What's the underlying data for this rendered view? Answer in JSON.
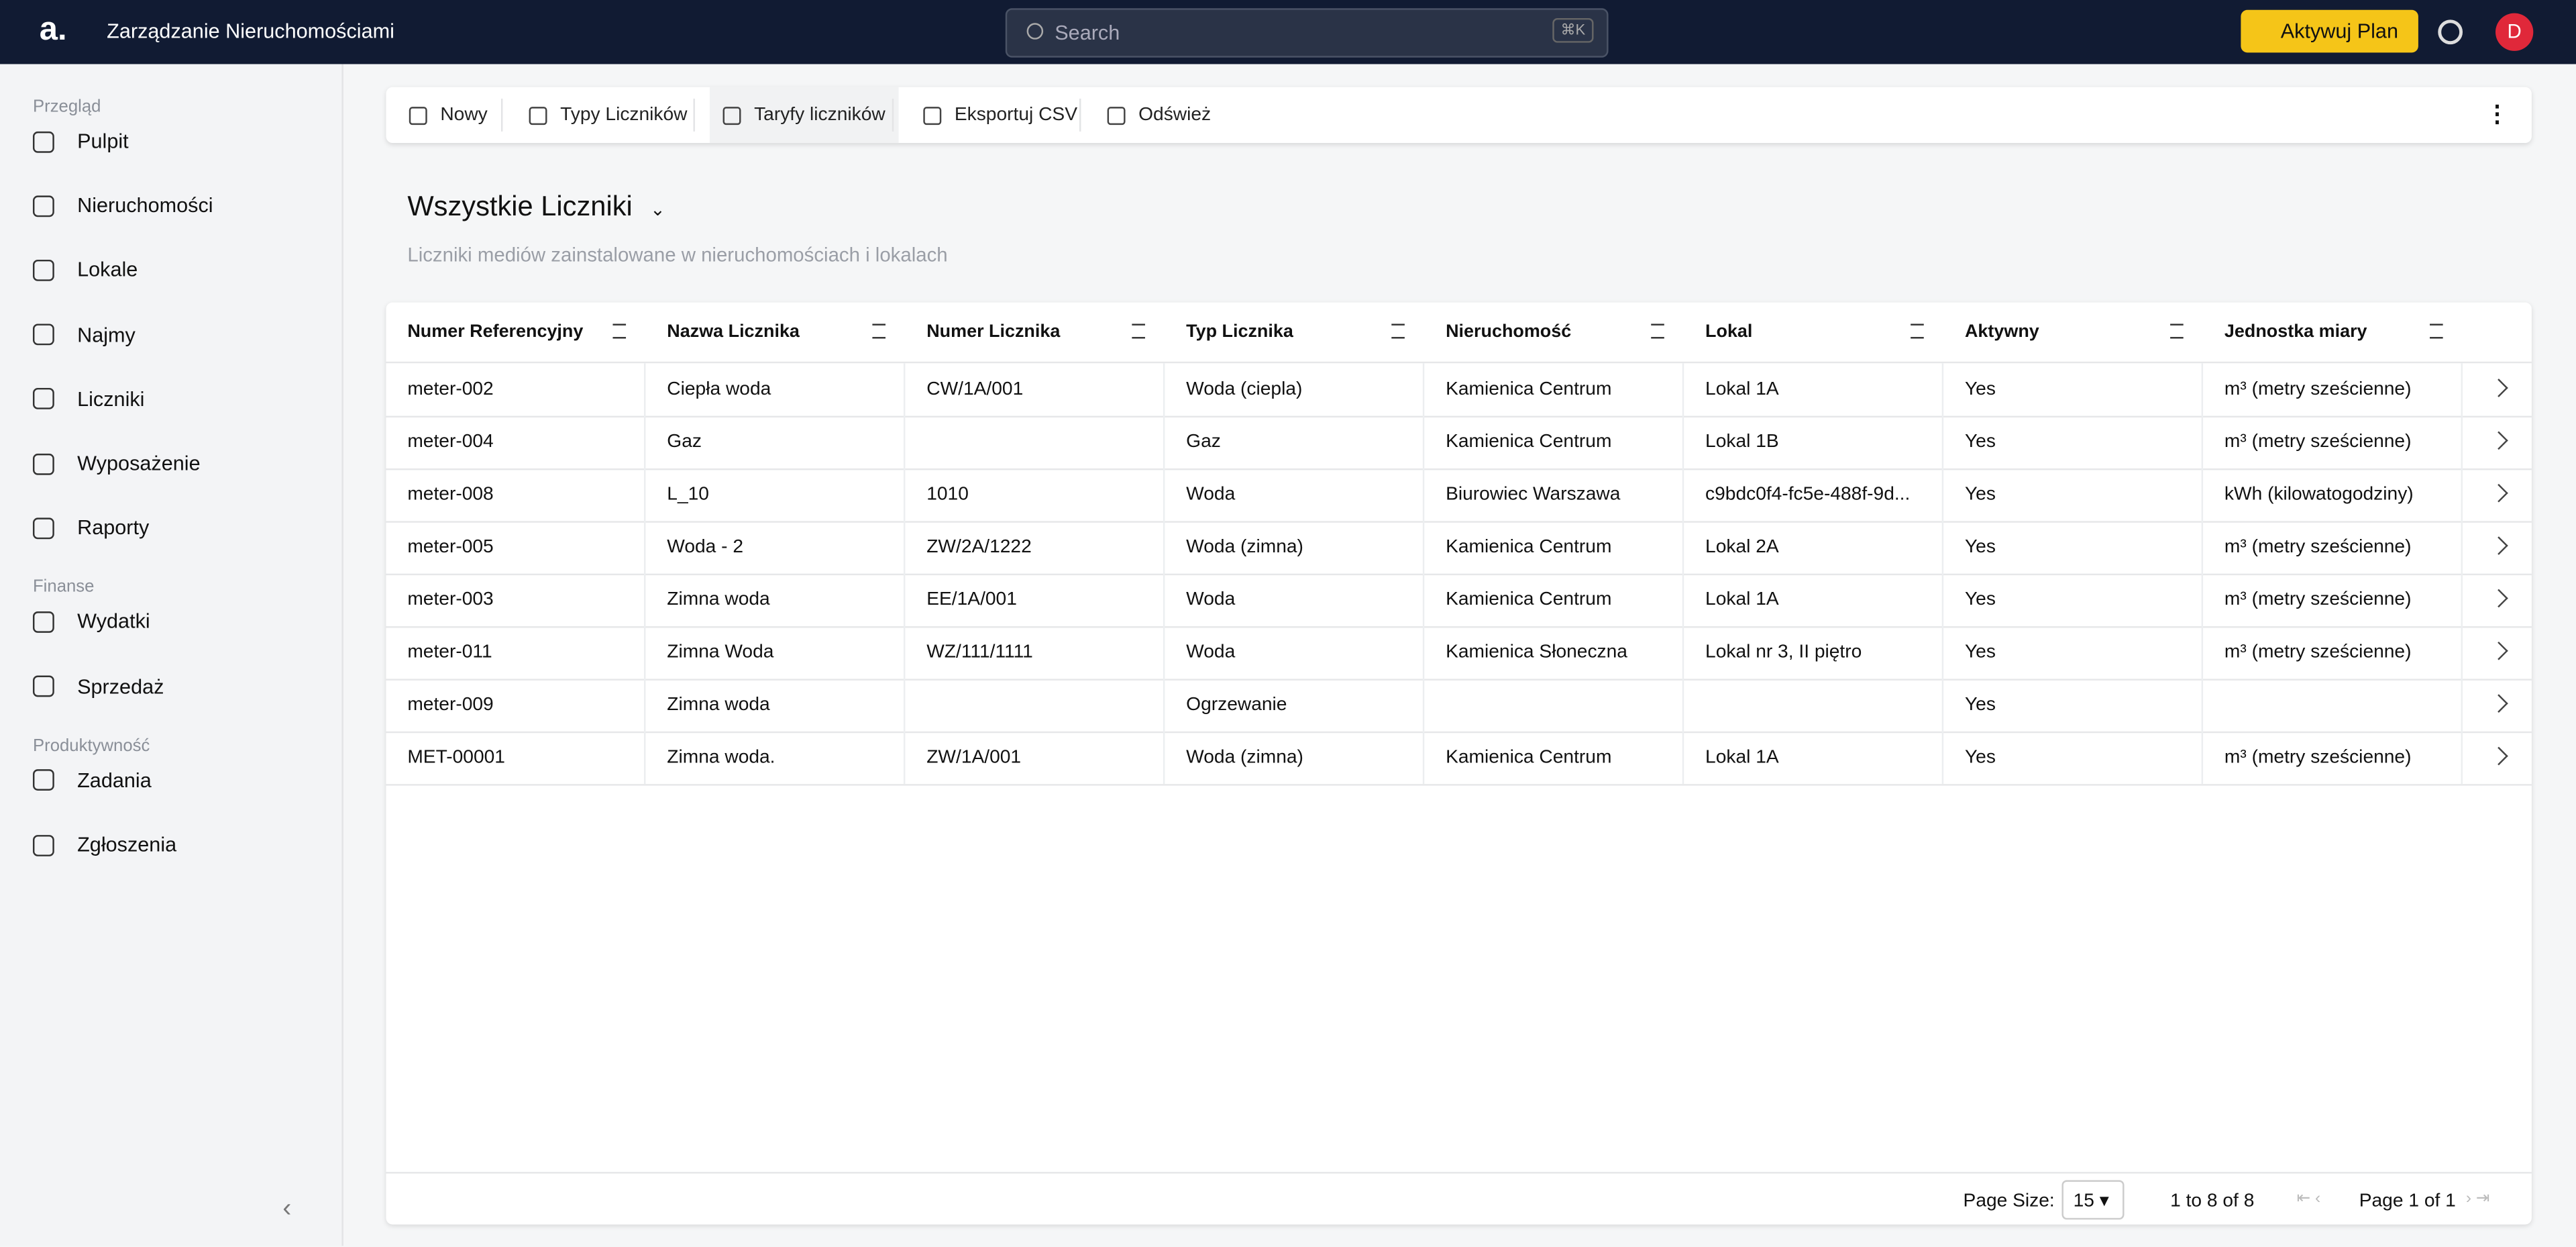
{
  "header": {
    "app_title": "Zarządzanie Nieruchomościami",
    "search_placeholder": "Search",
    "search_shortcut": "⌘K",
    "upgrade_button": "Aktywuj Plan",
    "avatar": "D"
  },
  "sidebar": {
    "sections": [
      {
        "title": "Przegląd",
        "items": [
          "Pulpit",
          "Nieruchomości",
          "Lokale",
          "Najmy",
          "Liczniki",
          "Wyposażenie",
          "Raporty"
        ]
      },
      {
        "title": "Finanse",
        "items": [
          "Wydatki",
          "Sprzedaż"
        ]
      },
      {
        "title": "Produktywność",
        "items": [
          "Zadania",
          "Zgłoszenia"
        ]
      }
    ]
  },
  "toolbar": {
    "buttons": [
      "Nowy",
      "Typy Liczników",
      "Taryfy liczników",
      "Eksportuj CSV",
      "Odśwież"
    ]
  },
  "page": {
    "title": "Wszystkie Liczniki",
    "subtitle": "Liczniki mediów zainstalowane w nieruchomościach i lokalach"
  },
  "table": {
    "columns": [
      "Numer Referencyjny",
      "Nazwa Licznika",
      "Numer Licznika",
      "Typ Licznika",
      "Nieruchomość",
      "Lokal",
      "Aktywny",
      "Jednostka miary"
    ],
    "rows": [
      [
        "meter-002",
        "Ciepła woda",
        "CW/1A/001",
        "Woda (ciepla)",
        "Kamienica Centrum",
        "Lokal 1A",
        "Yes",
        "m³ (metry sześcienne)"
      ],
      [
        "meter-004",
        "Gaz",
        null,
        "Gaz",
        "Kamienica Centrum",
        "Lokal 1B",
        "Yes",
        "m³ (metry sześcienne)"
      ],
      [
        "meter-008",
        "L_10",
        "1010",
        "Woda",
        "Biurowiec Warszawa",
        "c9bdc0f4-fc5e-488f-9d...",
        "Yes",
        "kWh (kilowatogodziny)"
      ],
      [
        "meter-005",
        "Woda - 2",
        "ZW/2A/1222",
        "Woda (zimna)",
        "Kamienica Centrum",
        "Lokal 2A",
        "Yes",
        "m³ (metry sześcienne)"
      ],
      [
        "meter-003",
        "Zimna woda",
        "EE/1A/001",
        "Woda",
        "Kamienica Centrum",
        "Lokal 1A",
        "Yes",
        "m³ (metry sześcienne)"
      ],
      [
        "meter-011",
        "Zimna Woda",
        "WZ/111/1111",
        "Woda",
        "Kamienica Słoneczna",
        "Lokal nr 3, II piętro",
        "Yes",
        "m³ (metry sześcienne)"
      ],
      [
        "meter-009",
        "Zimna woda",
        null,
        "Ogrzewanie",
        null,
        null,
        "Yes",
        null
      ],
      [
        "MET-00001",
        "Zimna woda.",
        "ZW/1A/001",
        "Woda (zimna)",
        "Kamienica Centrum",
        "Lokal 1A",
        "Yes",
        "m³ (metry sześcienne)"
      ]
    ]
  },
  "pagination": {
    "page_size_label": "Page Size:",
    "page_size": "15",
    "range": "1 to 8 of 8",
    "page": "Page 1 of 1"
  }
}
